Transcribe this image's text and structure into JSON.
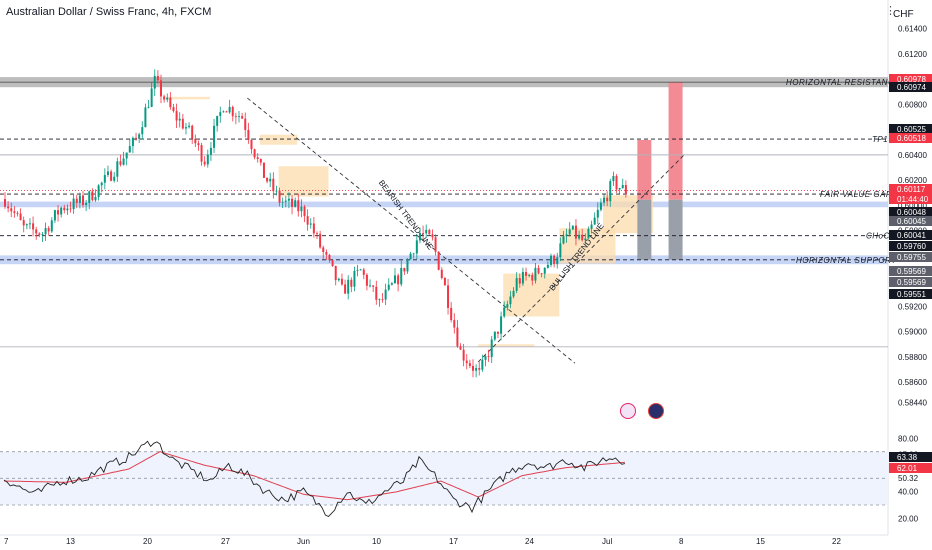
{
  "header": {
    "title": "Australian Dollar / Swiss Franc, 4h, FXCM",
    "currency": "CHF"
  },
  "colors": {
    "up": "#089981",
    "down": "#f23645",
    "rsi_line": "#222222",
    "rsi_ma": "#e04050",
    "support_band": "#c6d4f5",
    "resistance_band": "#bdbdbd",
    "demand_zone": "#fcdcae",
    "red_target": "#f28b94",
    "grey_stop": "#9aa0aa"
  },
  "chart_data": [
    {
      "type": "candlestick",
      "price_axis": {
        "ylim": [
          0.583,
          0.615
        ],
        "tick_labels": [
          "0.61400",
          "0.61200",
          "0.61000",
          "0.60800",
          "0.60600",
          "0.60400",
          "0.60200",
          "0.60000",
          "0.59800",
          "0.59600",
          "0.59400",
          "0.59200",
          "0.59000",
          "0.58800",
          "0.58600",
          "0.58440"
        ]
      },
      "x_axis": {
        "tick_labels": [
          "7",
          "13",
          "20",
          "27",
          "Jun",
          "10",
          "17",
          "24",
          "Jul",
          "8",
          "15",
          "22"
        ]
      },
      "ohlc_keypoints": [
        {
          "bar": 0,
          "price": 0.6005
        },
        {
          "bar": 6,
          "price": 0.5982
        },
        {
          "bar": 12,
          "price": 0.5978
        },
        {
          "bar": 18,
          "price": 0.5998
        },
        {
          "bar": 26,
          "price": 0.6004
        },
        {
          "bar": 33,
          "price": 0.6022
        },
        {
          "bar": 42,
          "price": 0.6052
        },
        {
          "bar": 48,
          "price": 0.6098
        },
        {
          "bar": 54,
          "price": 0.6072
        },
        {
          "bar": 58,
          "price": 0.6062
        },
        {
          "bar": 64,
          "price": 0.6036
        },
        {
          "bar": 70,
          "price": 0.608
        },
        {
          "bar": 76,
          "price": 0.607
        },
        {
          "bar": 82,
          "price": 0.6028
        },
        {
          "bar": 88,
          "price": 0.6004
        },
        {
          "bar": 96,
          "price": 0.5995
        },
        {
          "bar": 102,
          "price": 0.5962
        },
        {
          "bar": 108,
          "price": 0.5932
        },
        {
          "bar": 114,
          "price": 0.5948
        },
        {
          "bar": 120,
          "price": 0.5922
        },
        {
          "bar": 127,
          "price": 0.5946
        },
        {
          "bar": 133,
          "price": 0.5978
        },
        {
          "bar": 137,
          "price": 0.5972
        },
        {
          "bar": 141,
          "price": 0.5935
        },
        {
          "bar": 146,
          "price": 0.5884
        },
        {
          "bar": 152,
          "price": 0.5866
        },
        {
          "bar": 158,
          "price": 0.5902
        },
        {
          "bar": 164,
          "price": 0.594
        },
        {
          "bar": 170,
          "price": 0.5946
        },
        {
          "bar": 176,
          "price": 0.5958
        },
        {
          "bar": 181,
          "price": 0.598
        },
        {
          "bar": 186,
          "price": 0.597
        },
        {
          "bar": 191,
          "price": 0.6
        },
        {
          "bar": 195,
          "price": 0.6018
        },
        {
          "bar": 199,
          "price": 0.6011
        }
      ],
      "price_lines": [
        {
          "label": "HORIZONTAL RESISTANCE",
          "price": 0.60976,
          "style": "band"
        },
        {
          "label": "TP1",
          "price": 0.60525,
          "style": "dashed"
        },
        {
          "label": "FAIR VALUE GAP",
          "price": 0.6009,
          "style": "dashed"
        },
        {
          "label": "CHoCh",
          "price": 0.5976,
          "style": "dashed"
        },
        {
          "label": "HORIZONTAL SUPPORT",
          "price": 0.59569,
          "style": "band"
        }
      ],
      "trend_lines": [
        {
          "label": "BEARISH TREND LINE"
        },
        {
          "label": "BULLISH TREND LINE"
        }
      ],
      "price_labels": [
        {
          "text": "0.60978",
          "color": "#f23645"
        },
        {
          "text": "0.60974",
          "color": "#131722"
        },
        {
          "text": "0.60525",
          "color": "#131722"
        },
        {
          "text": "0.60518",
          "color": "#f23645"
        },
        {
          "text": "0.60117",
          "color": "#f23645"
        },
        {
          "text": "01:44:40",
          "color": "#f23645"
        },
        {
          "text": "0.60048",
          "color": "#131722"
        },
        {
          "text": "0.60045",
          "color": "#5d606b"
        },
        {
          "text": "0.60041",
          "color": "#131722"
        },
        {
          "text": "0.59760",
          "color": "#131722"
        },
        {
          "text": "0.59755",
          "color": "#5d606b"
        },
        {
          "text": "0.59569",
          "color": "#5d606b"
        },
        {
          "text": "0.59569",
          "color": "#5d606b"
        },
        {
          "text": "0.59551",
          "color": "#131722"
        }
      ]
    },
    {
      "type": "line",
      "ylim": [
        15,
        90
      ],
      "tick_labels": [
        "80.00",
        "67.82",
        "50.32",
        "40.00",
        "20.00"
      ],
      "levels": [
        70,
        50,
        30
      ],
      "value_labels": [
        {
          "text": "63.38",
          "color": "#131722"
        },
        {
          "text": "62.01",
          "color": "#f23645"
        }
      ],
      "rsi_keypoints": [
        {
          "bar": 0,
          "value": 50
        },
        {
          "bar": 6,
          "value": 42
        },
        {
          "bar": 10,
          "value": 38
        },
        {
          "bar": 18,
          "value": 48
        },
        {
          "bar": 26,
          "value": 50
        },
        {
          "bar": 32,
          "value": 58
        },
        {
          "bar": 40,
          "value": 66
        },
        {
          "bar": 48,
          "value": 79
        },
        {
          "bar": 54,
          "value": 64
        },
        {
          "bar": 60,
          "value": 56
        },
        {
          "bar": 66,
          "value": 48
        },
        {
          "bar": 72,
          "value": 60
        },
        {
          "bar": 78,
          "value": 52
        },
        {
          "bar": 84,
          "value": 40
        },
        {
          "bar": 90,
          "value": 34
        },
        {
          "bar": 96,
          "value": 40
        },
        {
          "bar": 104,
          "value": 24
        },
        {
          "bar": 110,
          "value": 40
        },
        {
          "bar": 116,
          "value": 30
        },
        {
          "bar": 122,
          "value": 40
        },
        {
          "bar": 128,
          "value": 48
        },
        {
          "bar": 133,
          "value": 63
        },
        {
          "bar": 138,
          "value": 52
        },
        {
          "bar": 144,
          "value": 34
        },
        {
          "bar": 150,
          "value": 28
        },
        {
          "bar": 156,
          "value": 42
        },
        {
          "bar": 162,
          "value": 55
        },
        {
          "bar": 168,
          "value": 62
        },
        {
          "bar": 174,
          "value": 58
        },
        {
          "bar": 180,
          "value": 64
        },
        {
          "bar": 186,
          "value": 58
        },
        {
          "bar": 192,
          "value": 64
        },
        {
          "bar": 196,
          "value": 66
        },
        {
          "bar": 199,
          "value": 63
        }
      ],
      "ma_keypoints": [
        {
          "bar": 0,
          "value": 48
        },
        {
          "bar": 20,
          "value": 47
        },
        {
          "bar": 40,
          "value": 57
        },
        {
          "bar": 50,
          "value": 70
        },
        {
          "bar": 64,
          "value": 60
        },
        {
          "bar": 80,
          "value": 52
        },
        {
          "bar": 96,
          "value": 38
        },
        {
          "bar": 110,
          "value": 34
        },
        {
          "bar": 126,
          "value": 40
        },
        {
          "bar": 140,
          "value": 48
        },
        {
          "bar": 152,
          "value": 36
        },
        {
          "bar": 166,
          "value": 52
        },
        {
          "bar": 180,
          "value": 58
        },
        {
          "bar": 199,
          "value": 62
        }
      ]
    }
  ]
}
